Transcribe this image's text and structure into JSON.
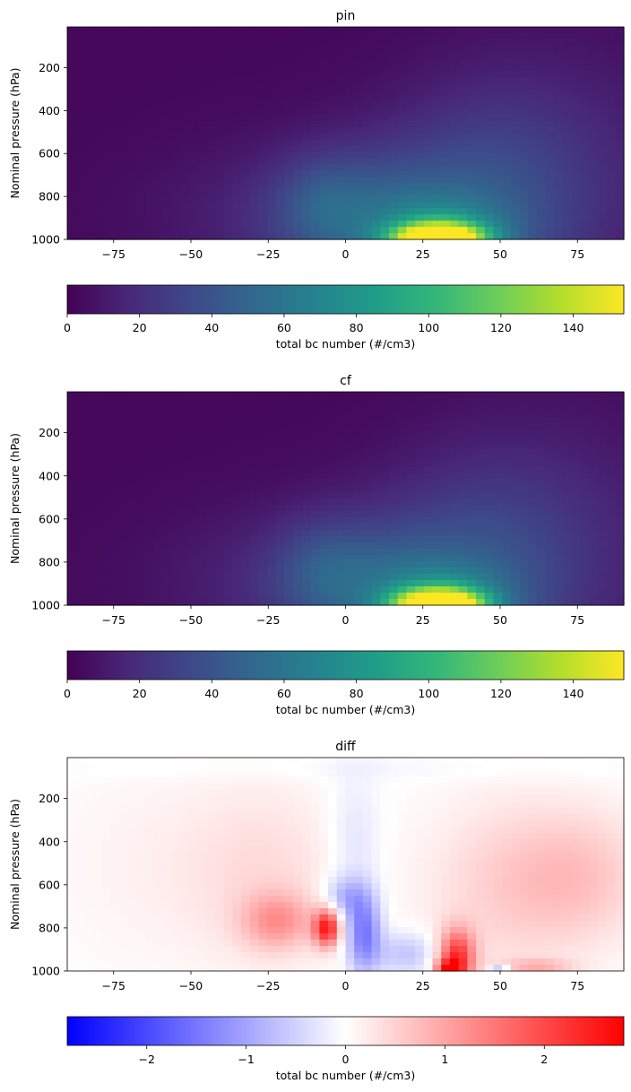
{
  "colormaps": {
    "viridis": [
      "#440154",
      "#482878",
      "#3e4989",
      "#31688e",
      "#26828e",
      "#1f9e89",
      "#35b779",
      "#6ece58",
      "#b5de2b",
      "#fde725"
    ],
    "bwr": [
      "#0000ff",
      "#ffffff",
      "#ff0000"
    ]
  },
  "chart_data": [
    {
      "type": "heatmap",
      "title": "pin",
      "ylabel": "Nominal pressure (hPa)",
      "xlabel": "",
      "xlim": [
        -90,
        90
      ],
      "ylim": [
        1000,
        0
      ],
      "x_ticks": [
        -75,
        -50,
        -25,
        0,
        25,
        50,
        75
      ],
      "x_tick_labels": [
        "−75",
        "−50",
        "−25",
        "0",
        "25",
        "50",
        "75"
      ],
      "y_ticks": [
        200,
        400,
        600,
        800,
        1000
      ],
      "y_tick_labels": [
        "200",
        "400",
        "600",
        "800",
        "1000"
      ],
      "colormap": "viridis",
      "colorbar": {
        "label": "total bc number (#/cm3)",
        "range": [
          0,
          154
        ],
        "ticks": [
          0,
          20,
          40,
          60,
          80,
          100,
          120,
          140
        ],
        "tick_labels": [
          "0",
          "20",
          "40",
          "60",
          "80",
          "100",
          "120",
          "140"
        ]
      },
      "features": [
        {
          "lat": 30,
          "p": 1000,
          "dlat": 10,
          "dp": 50,
          "v": 145
        },
        {
          "lat": 32,
          "p": 975,
          "dlat": 14,
          "dp": 110,
          "v": 40
        },
        {
          "lat": 5,
          "p": 900,
          "dlat": 22,
          "dp": 220,
          "v": 38
        },
        {
          "lat": -8,
          "p": 820,
          "dlat": 9,
          "dp": 150,
          "v": 12
        },
        {
          "lat": 45,
          "p": 850,
          "dlat": 22,
          "dp": 350,
          "v": 26
        },
        {
          "lat": 72,
          "p": 700,
          "dlat": 32,
          "dp": 450,
          "v": 12
        },
        {
          "lat": -40,
          "p": 880,
          "dlat": 28,
          "dp": 240,
          "v": 6
        }
      ]
    },
    {
      "type": "heatmap",
      "title": "cf",
      "ylabel": "Nominal pressure (hPa)",
      "xlabel": "",
      "xlim": [
        -90,
        90
      ],
      "ylim": [
        1000,
        0
      ],
      "x_ticks": [
        -75,
        -50,
        -25,
        0,
        25,
        50,
        75
      ],
      "x_tick_labels": [
        "−75",
        "−50",
        "−25",
        "0",
        "25",
        "50",
        "75"
      ],
      "y_ticks": [
        200,
        400,
        600,
        800,
        1000
      ],
      "y_tick_labels": [
        "200",
        "400",
        "600",
        "800",
        "1000"
      ],
      "colormap": "viridis",
      "colorbar": {
        "label": "total bc number (#/cm3)",
        "range": [
          0,
          154
        ],
        "ticks": [
          0,
          20,
          40,
          60,
          80,
          100,
          120,
          140
        ],
        "tick_labels": [
          "0",
          "20",
          "40",
          "60",
          "80",
          "100",
          "120",
          "140"
        ]
      },
      "features": [
        {
          "lat": 30,
          "p": 1000,
          "dlat": 10,
          "dp": 50,
          "v": 144
        },
        {
          "lat": 32,
          "p": 975,
          "dlat": 14,
          "dp": 110,
          "v": 39
        },
        {
          "lat": 5,
          "p": 900,
          "dlat": 22,
          "dp": 220,
          "v": 37
        },
        {
          "lat": -8,
          "p": 820,
          "dlat": 9,
          "dp": 150,
          "v": 11
        },
        {
          "lat": 45,
          "p": 850,
          "dlat": 22,
          "dp": 350,
          "v": 25
        },
        {
          "lat": 72,
          "p": 700,
          "dlat": 32,
          "dp": 450,
          "v": 11
        },
        {
          "lat": -40,
          "p": 880,
          "dlat": 28,
          "dp": 240,
          "v": 6
        }
      ]
    },
    {
      "type": "heatmap",
      "title": "diff",
      "ylabel": "Nominal pressure (hPa)",
      "xlabel": "",
      "xlim": [
        -90,
        90
      ],
      "ylim": [
        1000,
        0
      ],
      "x_ticks": [
        -75,
        -50,
        -25,
        0,
        25,
        50,
        75
      ],
      "x_tick_labels": [
        "−75",
        "−50",
        "−25",
        "0",
        "25",
        "50",
        "75"
      ],
      "y_ticks": [
        200,
        400,
        600,
        800,
        1000
      ],
      "y_tick_labels": [
        "200",
        "400",
        "600",
        "800",
        "1000"
      ],
      "colormap": "bwr",
      "colorbar": {
        "label": "total bc number (#/cm3)",
        "range": [
          -2.8,
          2.8
        ],
        "ticks": [
          -2,
          -1,
          0,
          1,
          2
        ],
        "tick_labels": [
          "−2",
          "−1",
          "0",
          "1",
          "2"
        ]
      },
      "features": [
        {
          "lat": -6,
          "p": 800,
          "dlat": 3,
          "dp": 60,
          "v": 2.4
        },
        {
          "lat": -22,
          "p": 770,
          "dlat": 8,
          "dp": 90,
          "v": 1.0
        },
        {
          "lat": 36,
          "p": 940,
          "dlat": 4,
          "dp": 90,
          "v": 2.2
        },
        {
          "lat": 33,
          "p": 990,
          "dlat": 3,
          "dp": 30,
          "v": 1.5
        },
        {
          "lat": 6,
          "p": 830,
          "dlat": 4,
          "dp": 130,
          "v": -1.5
        },
        {
          "lat": 0,
          "p": 660,
          "dlat": 5,
          "dp": 70,
          "v": -0.8
        },
        {
          "lat": 20,
          "p": 920,
          "dlat": 7,
          "dp": 70,
          "v": -0.7
        },
        {
          "lat": 3,
          "p": 400,
          "dlat": 6,
          "dp": 220,
          "v": -0.35
        },
        {
          "lat": 76,
          "p": 560,
          "dlat": 16,
          "dp": 220,
          "v": 0.6
        },
        {
          "lat": 50,
          "p": 620,
          "dlat": 18,
          "dp": 300,
          "v": 0.45
        },
        {
          "lat": -25,
          "p": 560,
          "dlat": 18,
          "dp": 300,
          "v": 0.35
        },
        {
          "lat": -60,
          "p": 500,
          "dlat": 25,
          "dp": 350,
          "v": 0.15
        },
        {
          "lat": 0,
          "p": 60,
          "dlat": 90,
          "dp": 40,
          "v": -0.1
        },
        {
          "lat": 62,
          "p": 980,
          "dlat": 8,
          "dp": 25,
          "v": 0.7
        },
        {
          "lat": 50,
          "p": 995,
          "dlat": 2,
          "dp": 15,
          "v": -1.2
        }
      ]
    }
  ]
}
